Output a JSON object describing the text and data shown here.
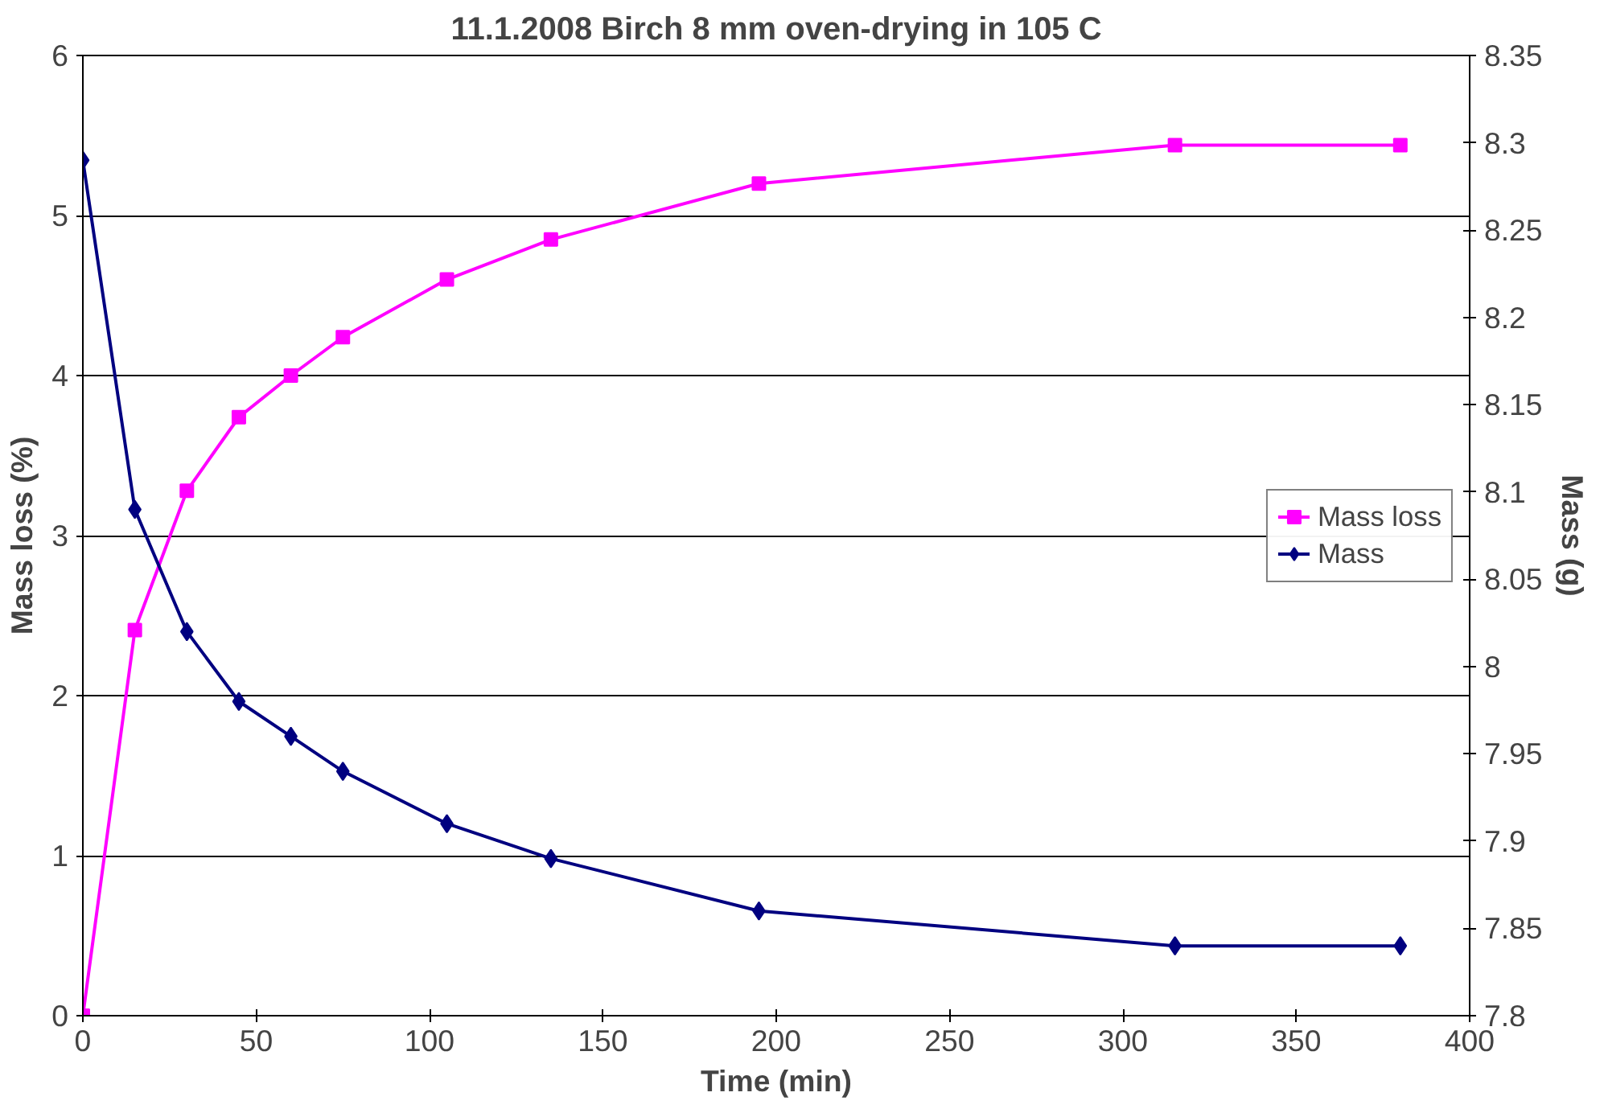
{
  "chart_data": {
    "type": "line",
    "title": "11.1.2008 Birch 8 mm oven-drying in 105 C",
    "xlabel": "Time (min)",
    "ylabel": "Mass loss (%)",
    "y2label": "Mass (g)",
    "x": [
      0,
      15,
      30,
      45,
      60,
      75,
      105,
      135,
      195,
      315,
      380
    ],
    "series": [
      {
        "name": "Mass loss",
        "color": "#ff00ff",
        "marker": "square",
        "values": [
          0,
          2.41,
          3.28,
          3.74,
          4.0,
          4.24,
          4.6,
          4.85,
          5.2,
          5.44,
          5.44
        ]
      },
      {
        "name": "Mass",
        "color": "#000080",
        "marker": "diamond",
        "axis": "y2",
        "values": [
          8.29,
          8.09,
          8.02,
          7.98,
          7.96,
          7.94,
          7.91,
          7.89,
          7.86,
          7.84,
          7.84
        ]
      }
    ],
    "xlim": [
      0,
      400
    ],
    "xticks": [
      0,
      50,
      100,
      150,
      200,
      250,
      300,
      350,
      400
    ],
    "ylim": [
      0,
      6
    ],
    "yticks": [
      0,
      1,
      2,
      3,
      4,
      5,
      6
    ],
    "y2lim": [
      7.8,
      8.35
    ],
    "y2ticks": [
      7.8,
      7.85,
      7.9,
      7.95,
      8,
      8.05,
      8.1,
      8.15,
      8.2,
      8.25,
      8.3,
      8.35
    ],
    "grid": "y",
    "legend": "right",
    "line_style": "solid"
  }
}
